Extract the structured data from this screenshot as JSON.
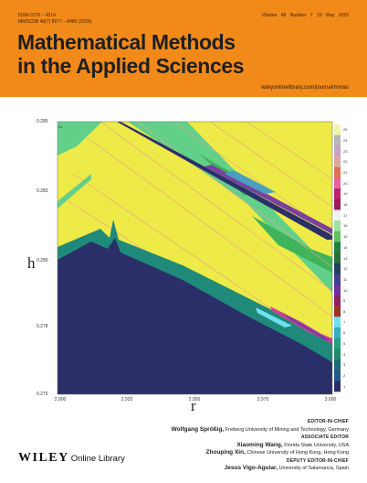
{
  "header": {
    "issn_lines": [
      "ISSN 0170 – 4214",
      "MMSCDB 48(7) 8977 – 8486 (2025)"
    ],
    "volume": "Volume 48",
    "number": "Number 7",
    "date": "15 May 2025",
    "title_line1": "Mathematical Methods",
    "title_line2": "in the Applied Sciences",
    "url": "wileyonlinelibrary.com/journal/mmas",
    "accent_color": "#f28a1a"
  },
  "figure": {
    "ylabel": "h",
    "xlabel": "r",
    "ytick_labels": [
      "0.285",
      "0.283",
      "0.280",
      "0.278",
      "0.275"
    ],
    "xtick_labels": [
      "2.900",
      "2.925",
      "2.950",
      "2.975",
      "3.000"
    ],
    "inplot_label": "24",
    "colorbar_labels": [
      "25",
      "24",
      "23",
      "22",
      "21",
      "20",
      "19",
      "18",
      "17",
      "16",
      "15",
      "14",
      "13",
      "12",
      "11",
      "10",
      "9",
      "8",
      "7",
      "6",
      "5",
      "4",
      "3",
      "2",
      "1"
    ],
    "colorbar_colors": [
      "#f2f2a8",
      "#b8b8b8",
      "#c8a0c8",
      "#d9a9a0",
      "#e07050",
      "#e6609a",
      "#c02070",
      "#9a1a5a",
      "#f0f0f0",
      "#a0e0a0",
      "#60c060",
      "#208040",
      "#2a6f3a",
      "#204060",
      "#404090",
      "#7030a0",
      "#902060",
      "#a03020",
      "#70e0f0",
      "#30b0c0",
      "#20a080",
      "#208a6a",
      "#1a6a7a",
      "#205a8a",
      "#2a2f6a"
    ],
    "colors": {
      "background": "#eeea48",
      "lower_region": "#2a2f6a",
      "boundary": "#1f8a7a",
      "band_light": "#63d08a",
      "band_mid": "#3fb45a",
      "purple": "#7a3fa0",
      "magenta": "#d0409a"
    }
  },
  "editors": [
    {
      "role": "EDITOR-IN-CHIEF",
      "name": "Wolfgang Sprößig,",
      "affiliation": "Freiberg University of Mining and Technology, Germany"
    },
    {
      "role": "ASSOCIATE EDITOR",
      "name": "Xiaoming Wang,",
      "affiliation": "Florida State University, USA"
    },
    {
      "role": "",
      "name": "Zhouping Xin,",
      "affiliation": "Chinese University of Hong Kong, Hong Kong"
    },
    {
      "role": "DEPUTY EDITOR-IN-CHIEF",
      "name": "Jesus Vigo-Aguiar,",
      "affiliation": "University of Salamanca, Spain"
    }
  ],
  "publisher": {
    "name": "WILEY",
    "suffix": "Online Library"
  }
}
